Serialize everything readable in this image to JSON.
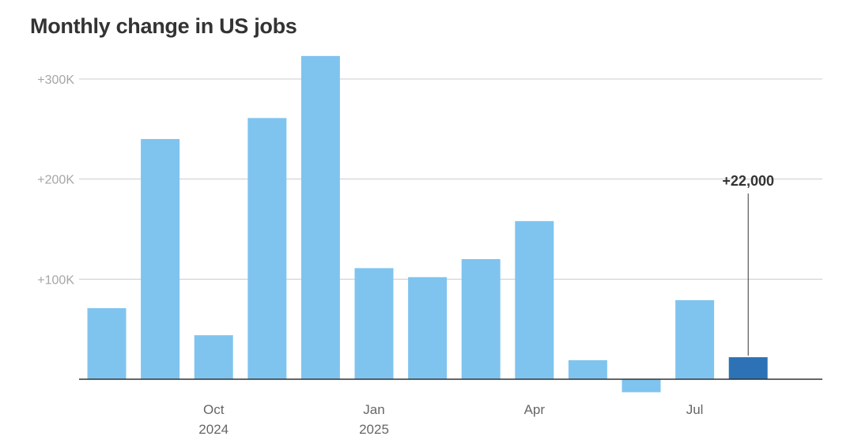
{
  "chart_data": {
    "type": "bar",
    "title": "Monthly change in US jobs",
    "xlabel": "",
    "ylabel": "",
    "categories": [
      "Aug 2024",
      "Sep 2024",
      "Oct 2024",
      "Nov 2024",
      "Dec 2024",
      "Jan 2025",
      "Feb 2025",
      "Mar 2025",
      "Apr 2025",
      "May 2025",
      "Jun 2025",
      "Jul 2025",
      "Aug 2025"
    ],
    "values": [
      71000,
      240000,
      44000,
      261000,
      323000,
      111000,
      102000,
      120000,
      158000,
      19000,
      -13000,
      79000,
      22000
    ],
    "ylim": [
      -30000,
      330000
    ],
    "yticks": [
      100000,
      200000,
      300000
    ],
    "ytick_labels": [
      "+100K",
      "+200K",
      "+300K"
    ],
    "xtick_labels": [
      {
        "index": 2,
        "month": "Oct",
        "year": "2024"
      },
      {
        "index": 5,
        "month": "Jan",
        "year": "2025"
      },
      {
        "index": 8,
        "month": "Apr",
        "year": ""
      },
      {
        "index": 11,
        "month": "Jul",
        "year": ""
      }
    ],
    "annotation": {
      "index": 12,
      "label": "+22,000"
    },
    "grid": true,
    "colors": {
      "bar": "#7fc4ef",
      "highlight": "#2c72b5",
      "grid": "#cccccc",
      "axis": "#333333"
    }
  }
}
